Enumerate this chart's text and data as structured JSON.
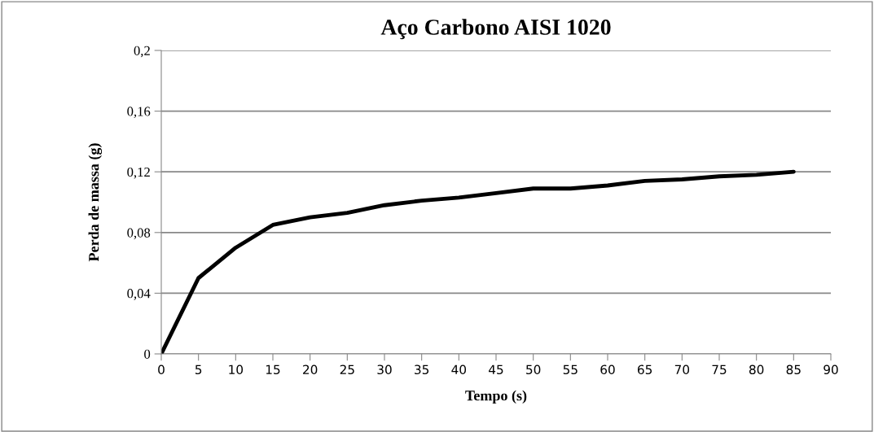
{
  "chart_data": {
    "type": "line",
    "title": "Aço Carbono AISI 1020",
    "xlabel": "Tempo (s)",
    "ylabel": "Perda de massa (g)",
    "x": [
      0,
      5,
      10,
      15,
      20,
      25,
      30,
      35,
      40,
      45,
      50,
      55,
      60,
      65,
      70,
      75,
      80,
      85
    ],
    "series": [
      {
        "color": "#000000",
        "values": [
          0,
          0.05,
          0.07,
          0.085,
          0.09,
          0.093,
          0.098,
          0.101,
          0.103,
          0.106,
          0.109,
          0.109,
          0.111,
          0.114,
          0.115,
          0.117,
          0.118,
          0.12
        ]
      }
    ],
    "xlim": [
      0,
      90
    ],
    "xticks": [
      0,
      5,
      10,
      15,
      20,
      25,
      30,
      35,
      40,
      45,
      50,
      55,
      60,
      65,
      70,
      75,
      80,
      85,
      90
    ],
    "ylim": [
      0,
      0.2
    ],
    "yticks": [
      {
        "value": 0,
        "label": "0"
      },
      {
        "value": 0.04,
        "label": "0,04"
      },
      {
        "value": 0.08,
        "label": "0,08"
      },
      {
        "value": 0.12,
        "label": "0,12"
      },
      {
        "value": 0.16,
        "label": "0,16"
      },
      {
        "value": 0.2,
        "label": "0,2"
      }
    ],
    "grid": "y",
    "marker": "none",
    "line_style": "solid"
  }
}
